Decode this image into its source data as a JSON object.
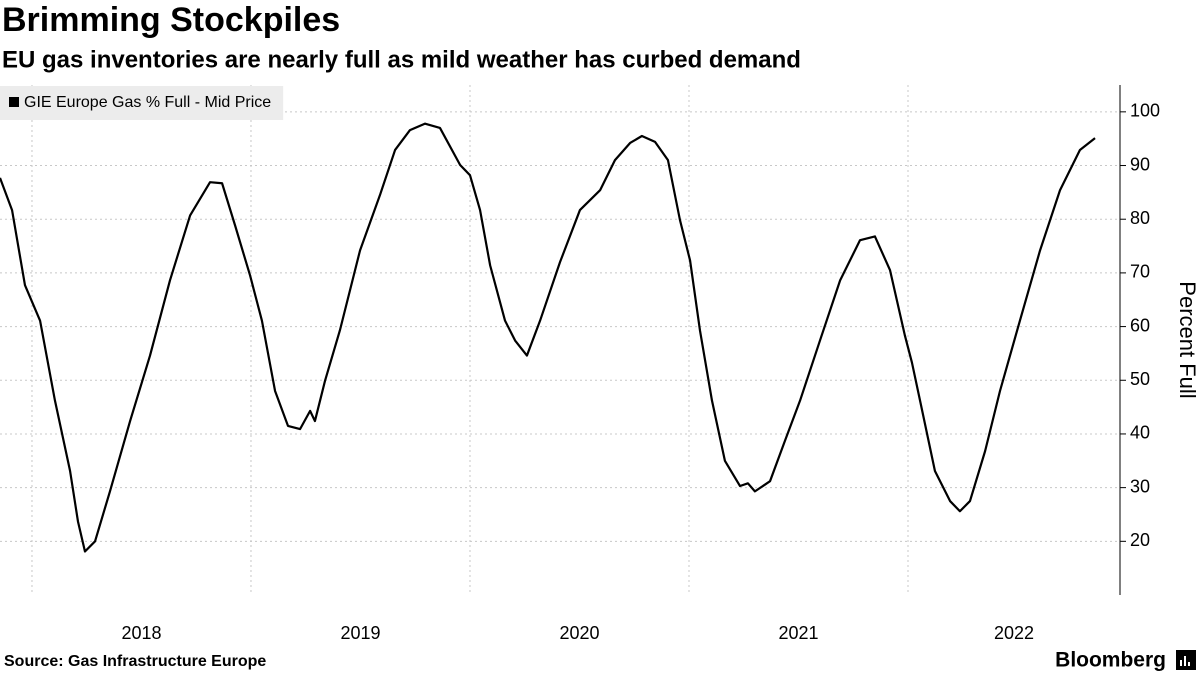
{
  "chart_data": {
    "type": "line",
    "title": "Brimming Stockpiles",
    "subtitle": "EU gas inventories are nearly full as mild weather has curbed demand",
    "y_axis_label": "Percent Full",
    "source": "Source: Gas Infrastructure Europe",
    "logo": "Bloomberg",
    "x": [
      2017.854,
      2017.909,
      2017.968,
      2018.037,
      2018.105,
      2018.174,
      2018.21,
      2018.242,
      2018.288,
      2018.356,
      2018.448,
      2018.539,
      2018.63,
      2018.722,
      2018.813,
      2018.868,
      2018.927,
      2018.996,
      2019.05,
      2019.11,
      2019.169,
      2019.224,
      2019.27,
      2019.292,
      2019.338,
      2019.406,
      2019.498,
      2019.589,
      2019.658,
      2019.726,
      2019.795,
      2019.863,
      2019.955,
      2020.0,
      2020.046,
      2020.092,
      2020.16,
      2020.206,
      2020.26,
      2020.32,
      2020.411,
      2020.502,
      2020.594,
      2020.662,
      2020.731,
      2020.785,
      2020.845,
      2020.904,
      2020.959,
      2021.005,
      2021.05,
      2021.105,
      2021.164,
      2021.233,
      2021.269,
      2021.301,
      2021.37,
      2021.438,
      2021.507,
      2021.598,
      2021.69,
      2021.781,
      2021.849,
      2021.918,
      2021.986,
      2022.018,
      2022.055,
      2022.123,
      2022.192,
      2022.237,
      2022.283,
      2022.352,
      2022.42,
      2022.511,
      2022.603,
      2022.694,
      2022.785,
      2022.854
    ],
    "series": [
      {
        "name": "GIE Europe Gas % Full - Mid Price",
        "color": "#000000",
        "values": [
          87.7,
          81.7,
          67.7,
          61.1,
          46.2,
          33.1,
          23.7,
          18.1,
          20,
          29.3,
          42.4,
          54.6,
          68.6,
          80.7,
          86.9,
          86.7,
          78.9,
          69.5,
          61.1,
          48,
          41.5,
          40.9,
          44.3,
          42.4,
          49.9,
          59.3,
          74.2,
          84.5,
          92.9,
          96.6,
          97.8,
          97,
          90.1,
          88.2,
          81.7,
          71.4,
          61.1,
          57.4,
          54.6,
          61.1,
          72,
          81.7,
          85.4,
          91,
          94.2,
          95.5,
          94.4,
          91,
          79.8,
          72.3,
          59.3,
          46.2,
          35,
          30.3,
          30.8,
          29.3,
          31.2,
          38.7,
          46.2,
          57.4,
          68.6,
          76.1,
          76.8,
          70.5,
          58.3,
          53.3,
          46.2,
          33.1,
          27.5,
          25.6,
          27.5,
          36.8,
          48,
          61.1,
          74.2,
          85.4,
          92.9,
          95.1
        ]
      }
    ],
    "xlim": [
      2017.854,
      2022.968
    ],
    "xticks": [
      2018,
      2019,
      2020,
      2021,
      2022
    ],
    "ylim": [
      10,
      105
    ],
    "yticks": [
      20,
      30,
      40,
      50,
      60,
      70,
      80,
      90,
      100
    ],
    "y_axis_side": "right",
    "grid": true,
    "legend": "top-left"
  }
}
